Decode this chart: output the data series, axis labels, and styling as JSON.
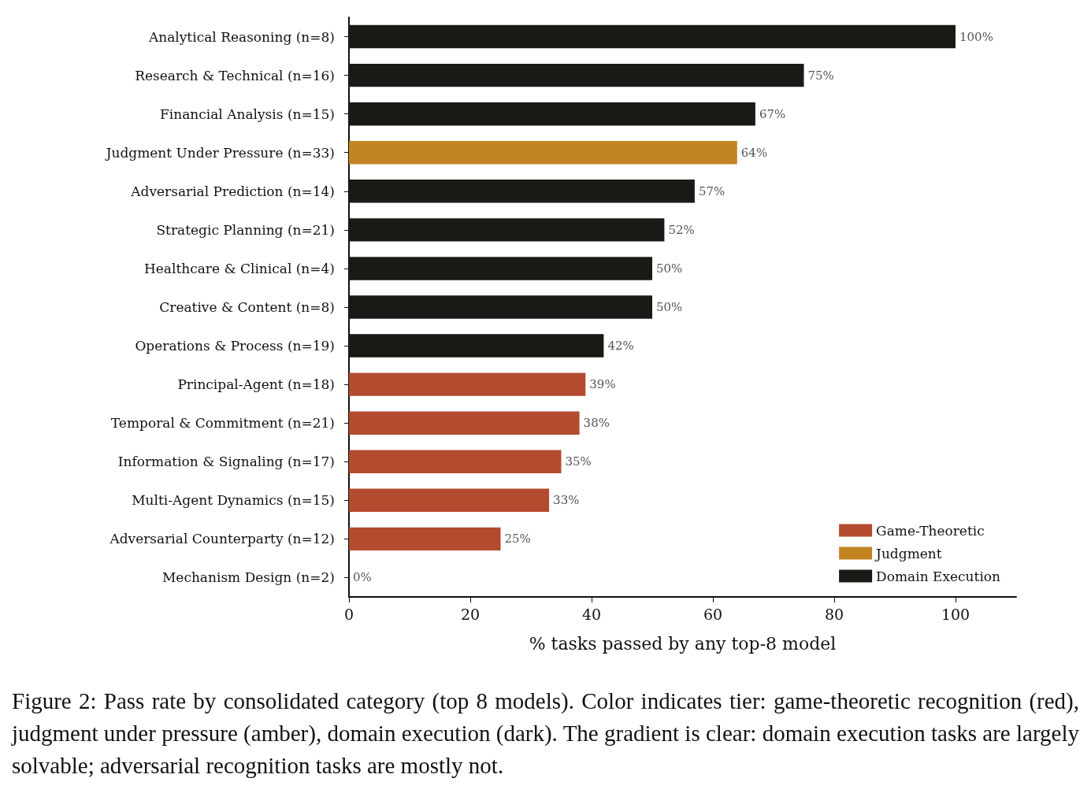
{
  "chart_data": {
    "type": "bar",
    "orientation": "horizontal",
    "xlabel": "% tasks passed by any top-8 model",
    "categories": [
      "Analytical Reasoning (n=8)",
      "Research & Technical (n=16)",
      "Financial Analysis (n=15)",
      "Judgment Under Pressure (n=33)",
      "Adversarial Prediction (n=14)",
      "Strategic Planning (n=21)",
      "Healthcare & Clinical (n=4)",
      "Creative & Content (n=8)",
      "Operations & Process (n=19)",
      "Principal-Agent (n=18)",
      "Temporal & Commitment (n=21)",
      "Information & Signaling (n=17)",
      "Multi-Agent Dynamics (n=15)",
      "Adversarial Counterparty (n=12)",
      "Mechanism Design (n=2)"
    ],
    "series": [
      {
        "name": "Game-Theoretic",
        "color": "#b34b2f",
        "values": [
          null,
          null,
          null,
          null,
          null,
          null,
          null,
          null,
          null,
          39,
          38,
          35,
          33,
          25,
          0
        ],
        "value_labels": [
          null,
          null,
          null,
          null,
          null,
          null,
          null,
          null,
          null,
          "39%",
          "38%",
          "35%",
          "33%",
          "25%",
          "0%"
        ]
      },
      {
        "name": "Judgment",
        "color": "#c38522",
        "values": [
          null,
          null,
          null,
          64,
          null,
          null,
          null,
          null,
          null,
          null,
          null,
          null,
          null,
          null,
          null
        ],
        "value_labels": [
          null,
          null,
          null,
          "64%",
          null,
          null,
          null,
          null,
          null,
          null,
          null,
          null,
          null,
          null,
          null
        ]
      },
      {
        "name": "Domain Execution",
        "color": "#1a1915",
        "values": [
          100,
          75,
          67,
          null,
          57,
          52,
          50,
          50,
          42,
          null,
          null,
          null,
          null,
          null,
          null
        ],
        "value_labels": [
          "100%",
          "75%",
          "67%",
          null,
          "57%",
          "52%",
          "50%",
          "50%",
          "42%",
          null,
          null,
          null,
          null,
          null,
          null
        ]
      }
    ],
    "xlim": [
      0,
      110
    ],
    "xticks": [
      0,
      20,
      40,
      60,
      80,
      100
    ],
    "grid": false,
    "legend": "bottom right",
    "annotations": [
      "Figure 2: Pass rate by consolidated category (top 8 models). Color indicates tier: game-theoretic recognition (red), judgment under pressure (amber), domain execution (dark). The gradient is clear: domain execution tasks are largely solvable; adversarial recognition tasks are mostly not."
    ]
  }
}
